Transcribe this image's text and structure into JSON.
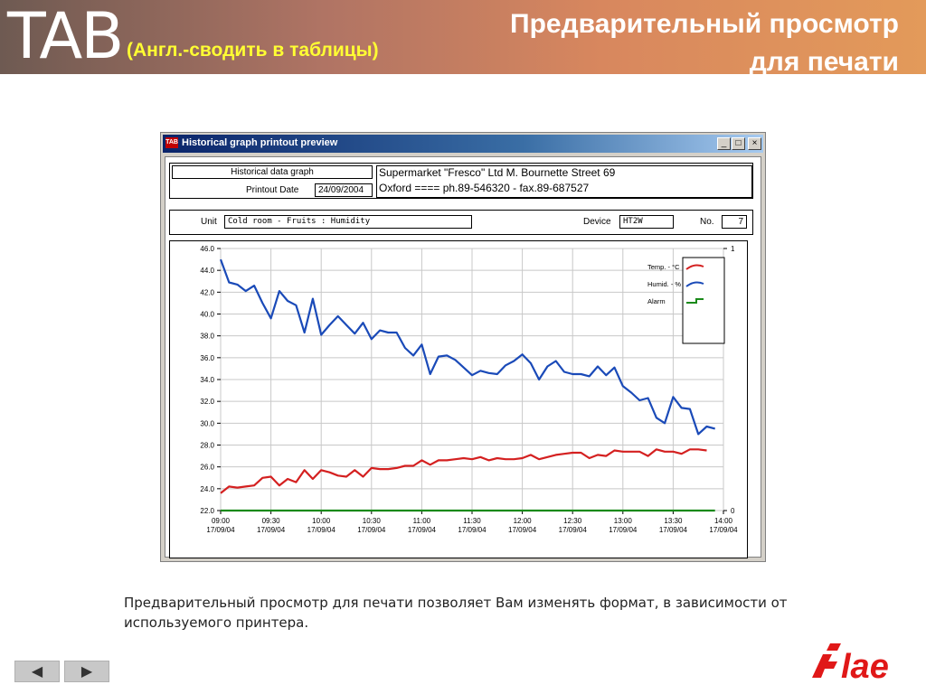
{
  "banner": {
    "logo_text": "TAB",
    "subtitle": "(Англ.-сводить в таблицы)",
    "title_line1": "Предварительный просмотр",
    "title_line2": "для печати"
  },
  "window": {
    "title": "Historical graph printout preview",
    "icon_text": "TAB",
    "buttons": {
      "minimize": "_",
      "maximize": "□",
      "close": "×"
    }
  },
  "header": {
    "graph_label": "Historical data graph",
    "printout_date_label": "Printout Date",
    "printout_date": "24/09/2004",
    "company_line1": "Supermarket \"Fresco\" Ltd  M. Bournette Street 69",
    "company_line2": "Oxford   ====   ph.89-546320 - fax.89-687527"
  },
  "unit_row": {
    "unit_label": "Unit",
    "unit_value": "Cold room - Fruits : Humidity",
    "device_label": "Device",
    "device_value": "HT2W",
    "no_label": "No.",
    "no_value": "7"
  },
  "legend": [
    {
      "name": "Temp. - °C",
      "color": "#d42020"
    },
    {
      "name": "Humid. - %",
      "color": "#1a4ab8"
    },
    {
      "name": "Alarm",
      "color": "#1a8a1a"
    }
  ],
  "chart_data": {
    "type": "line",
    "ylim": [
      22.0,
      46.0
    ],
    "yticks": [
      "46.0",
      "44.0",
      "42.0",
      "40.0",
      "38.0",
      "36.0",
      "34.0",
      "32.0",
      "30.0",
      "28.0",
      "26.0",
      "24.0",
      "22.0"
    ],
    "y2ticks": [
      "1",
      "0"
    ],
    "x_ticks": [
      {
        "time": "09:00",
        "date": "17/09/04"
      },
      {
        "time": "09:30",
        "date": "17/09/04"
      },
      {
        "time": "10:00",
        "date": "17/09/04"
      },
      {
        "time": "10:30",
        "date": "17/09/04"
      },
      {
        "time": "11:00",
        "date": "17/09/04"
      },
      {
        "time": "11:30",
        "date": "17/09/04"
      },
      {
        "time": "12:00",
        "date": "17/09/04"
      },
      {
        "time": "12:30",
        "date": "17/09/04"
      },
      {
        "time": "13:00",
        "date": "17/09/04"
      },
      {
        "time": "13:30",
        "date": "17/09/04"
      },
      {
        "time": "14:00",
        "date": "17/09/04"
      }
    ],
    "x_range_minutes": [
      0,
      300
    ],
    "series": [
      {
        "name": "Humid. - %",
        "color": "#1a4ab8",
        "points": [
          [
            0,
            45.0
          ],
          [
            5,
            42.9
          ],
          [
            10,
            42.7
          ],
          [
            15,
            42.1
          ],
          [
            20,
            42.6
          ],
          [
            25,
            41.0
          ],
          [
            30,
            39.6
          ],
          [
            35,
            42.1
          ],
          [
            40,
            41.2
          ],
          [
            45,
            40.8
          ],
          [
            50,
            38.3
          ],
          [
            55,
            41.4
          ],
          [
            60,
            38.1
          ],
          [
            65,
            39.0
          ],
          [
            70,
            39.8
          ],
          [
            75,
            39.0
          ],
          [
            80,
            38.2
          ],
          [
            85,
            39.2
          ],
          [
            90,
            37.7
          ],
          [
            95,
            38.5
          ],
          [
            100,
            38.3
          ],
          [
            105,
            38.3
          ],
          [
            110,
            36.9
          ],
          [
            115,
            36.2
          ],
          [
            120,
            37.2
          ],
          [
            125,
            34.5
          ],
          [
            130,
            36.1
          ],
          [
            135,
            36.2
          ],
          [
            140,
            35.8
          ],
          [
            145,
            35.1
          ],
          [
            150,
            34.4
          ],
          [
            155,
            34.8
          ],
          [
            160,
            34.6
          ],
          [
            165,
            34.5
          ],
          [
            170,
            35.3
          ],
          [
            175,
            35.7
          ],
          [
            180,
            36.3
          ],
          [
            185,
            35.5
          ],
          [
            190,
            34.0
          ],
          [
            195,
            35.2
          ],
          [
            200,
            35.7
          ],
          [
            205,
            34.7
          ],
          [
            210,
            34.5
          ],
          [
            215,
            34.5
          ],
          [
            220,
            34.3
          ],
          [
            225,
            35.2
          ],
          [
            230,
            34.4
          ],
          [
            235,
            35.1
          ],
          [
            240,
            33.4
          ],
          [
            245,
            32.8
          ],
          [
            250,
            32.1
          ],
          [
            255,
            32.3
          ],
          [
            260,
            30.5
          ],
          [
            265,
            30.0
          ],
          [
            270,
            32.4
          ],
          [
            275,
            31.4
          ],
          [
            280,
            31.3
          ],
          [
            285,
            29.0
          ],
          [
            290,
            29.7
          ],
          [
            295,
            29.5
          ]
        ]
      },
      {
        "name": "Temp. - °C",
        "color": "#d42020",
        "points": [
          [
            0,
            23.6
          ],
          [
            5,
            24.2
          ],
          [
            10,
            24.1
          ],
          [
            15,
            24.2
          ],
          [
            20,
            24.3
          ],
          [
            25,
            25.0
          ],
          [
            30,
            25.1
          ],
          [
            35,
            24.3
          ],
          [
            40,
            24.9
          ],
          [
            45,
            24.6
          ],
          [
            50,
            25.7
          ],
          [
            55,
            24.9
          ],
          [
            60,
            25.7
          ],
          [
            65,
            25.5
          ],
          [
            70,
            25.2
          ],
          [
            75,
            25.1
          ],
          [
            80,
            25.7
          ],
          [
            85,
            25.1
          ],
          [
            90,
            25.9
          ],
          [
            95,
            25.8
          ],
          [
            100,
            25.8
          ],
          [
            105,
            25.9
          ],
          [
            110,
            26.1
          ],
          [
            115,
            26.1
          ],
          [
            120,
            26.6
          ],
          [
            125,
            26.2
          ],
          [
            130,
            26.6
          ],
          [
            135,
            26.6
          ],
          [
            140,
            26.7
          ],
          [
            145,
            26.8
          ],
          [
            150,
            26.7
          ],
          [
            155,
            26.9
          ],
          [
            160,
            26.6
          ],
          [
            165,
            26.8
          ],
          [
            170,
            26.7
          ],
          [
            175,
            26.7
          ],
          [
            180,
            26.8
          ],
          [
            185,
            27.1
          ],
          [
            190,
            26.7
          ],
          [
            195,
            26.9
          ],
          [
            200,
            27.1
          ],
          [
            205,
            27.2
          ],
          [
            210,
            27.3
          ],
          [
            215,
            27.3
          ],
          [
            220,
            26.8
          ],
          [
            225,
            27.1
          ],
          [
            230,
            27.0
          ],
          [
            235,
            27.5
          ],
          [
            240,
            27.4
          ],
          [
            245,
            27.4
          ],
          [
            250,
            27.4
          ],
          [
            255,
            27.0
          ],
          [
            260,
            27.6
          ],
          [
            265,
            27.4
          ],
          [
            270,
            27.4
          ],
          [
            275,
            27.2
          ],
          [
            280,
            27.6
          ],
          [
            285,
            27.6
          ],
          [
            290,
            27.5
          ]
        ]
      },
      {
        "name": "Alarm",
        "color": "#1a8a1a",
        "points": [
          [
            0,
            22.0
          ],
          [
            295,
            22.0
          ]
        ]
      }
    ]
  },
  "caption": "Предварительный просмотр для печати позволяет Вам изменять формат, в зависимости от используемого принтера.",
  "nav": {
    "prev": "◀",
    "next": "▶"
  },
  "footer_logo": "lae"
}
